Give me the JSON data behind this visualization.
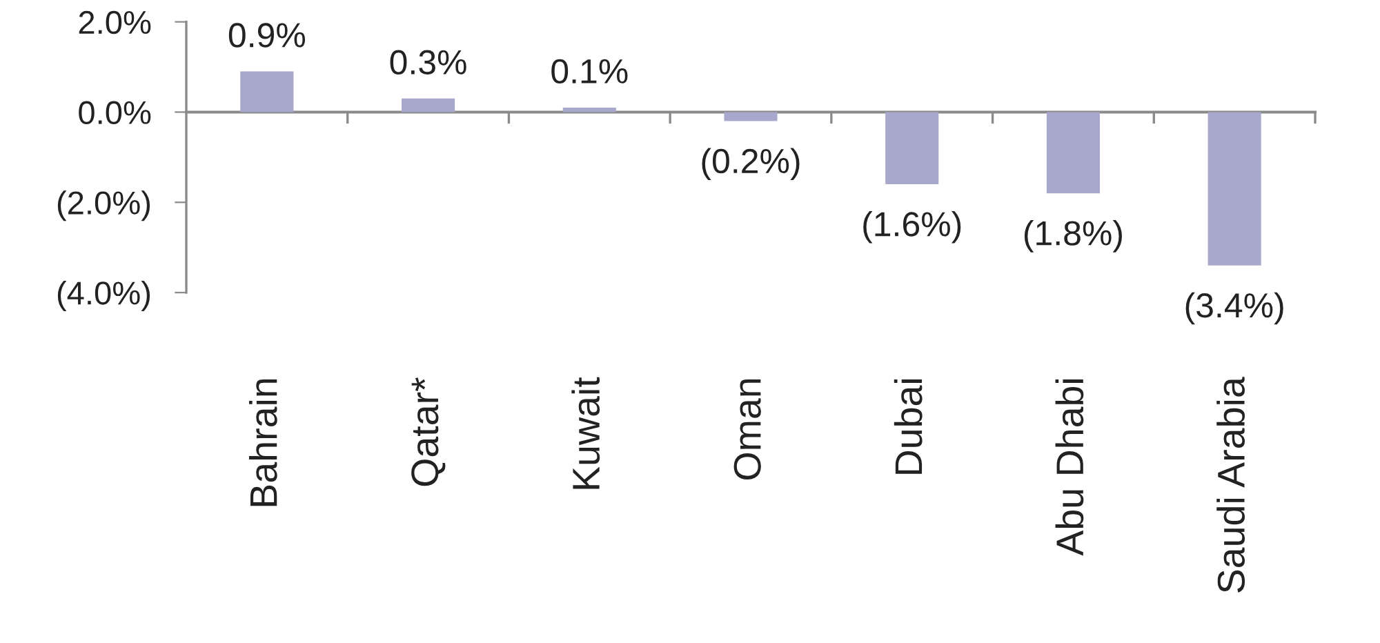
{
  "chart_data": {
    "type": "bar",
    "categories": [
      "Bahrain",
      "Qatar*",
      "Kuwait",
      "Oman",
      "Dubai",
      "Abu Dhabi",
      "Saudi Arabia"
    ],
    "values": [
      0.9,
      0.3,
      0.1,
      -0.2,
      -1.6,
      -1.8,
      -3.4
    ],
    "color": "#a8a8cc",
    "value_labels": [
      "0.9%",
      "0.3%",
      "0.1%",
      "(0.2%)",
      "(1.6%)",
      "(1.8%)",
      "(3.4%)"
    ],
    "ylim": [
      -4,
      2
    ],
    "yticks": [
      {
        "value": 2,
        "label": "2.0%"
      },
      {
        "value": 0,
        "label": "0.0%"
      },
      {
        "value": -2,
        "label": "(2.0%)"
      },
      {
        "value": -4,
        "label": "(4.0%)"
      }
    ]
  }
}
